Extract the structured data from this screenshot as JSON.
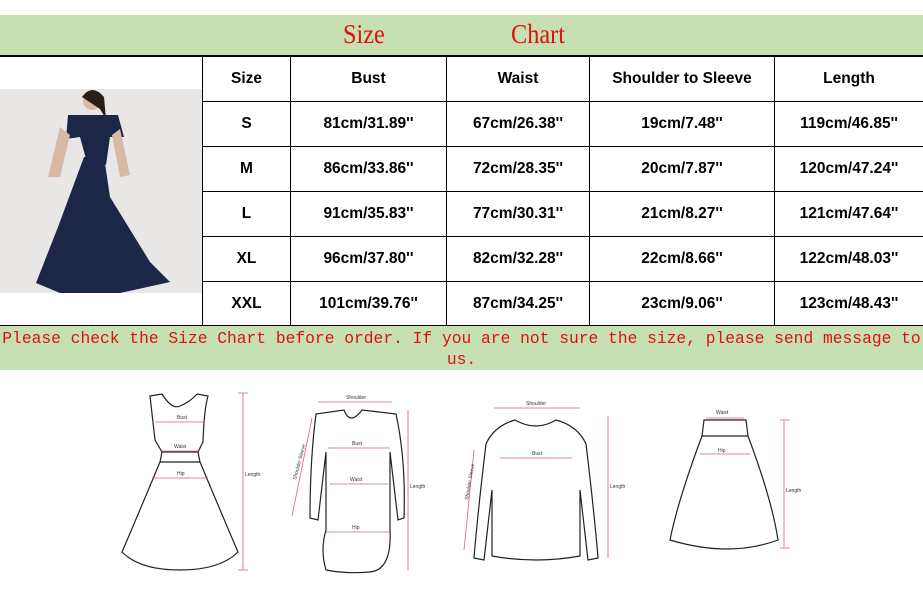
{
  "title": {
    "word1": "Size",
    "word2": "Chart"
  },
  "table": {
    "headers": [
      "Size",
      "Bust",
      "Waist",
      "Shoulder to Sleeve",
      "Length"
    ],
    "rows": [
      [
        "S",
        "81cm/31.89''",
        "67cm/26.38''",
        "19cm/7.48''",
        "119cm/46.85''"
      ],
      [
        "M",
        "86cm/33.86''",
        "72cm/28.35''",
        "20cm/7.87''",
        "120cm/47.24''"
      ],
      [
        "L",
        "91cm/35.83''",
        "77cm/30.31''",
        "21cm/8.27''",
        "121cm/47.64''"
      ],
      [
        "XL",
        "96cm/37.80''",
        "82cm/32.28''",
        "22cm/8.66''",
        "122cm/48.03''"
      ],
      [
        "XXL",
        "101cm/39.76''",
        "87cm/34.25''",
        "23cm/9.06''",
        "123cm/48.43''"
      ]
    ]
  },
  "notice": "Please check the Size Chart before order. If you are not sure the size, please send message to us.",
  "diagram_labels": {
    "bust": "Bust",
    "waist": "Waist",
    "hip": "Hip",
    "length": "Length",
    "shoulder": "Shoulder",
    "shoulder_sleeve": "Shoulder Sleeve"
  },
  "colors": {
    "band": "#c6e0b4",
    "title_text": "#e01010",
    "measure_line": "#e0607a",
    "dress": "#1c2748"
  }
}
